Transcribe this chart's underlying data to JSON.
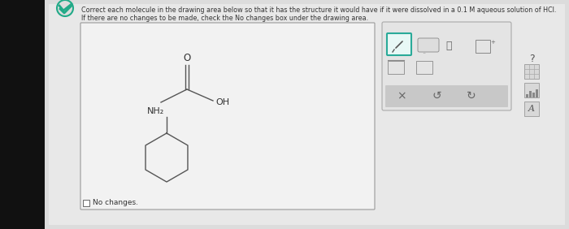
{
  "title_text": "Correct each molecule in the drawing area below so that it has the structure it would have if it were dissolved in a 0.1 M aqueous solution of HCl.",
  "subtitle_text": "If there are no changes to be made, check the No changes box under the drawing area.",
  "no_changes_text": "No changes.",
  "outer_bg": "#3a2a1a",
  "left_bar_color": "#1a1a1a",
  "page_bg": "#e8e8e8",
  "drawing_box_bg": "#f0f0f0",
  "drawing_box_border": "#aaaaaa",
  "toolbar_bg": "#e0e0e0",
  "toolbar_border": "#aaaaaa",
  "pencil_box_bg": "#e8f8f8",
  "pencil_box_border": "#2aaa99",
  "bottom_bar_bg": "#cccccc",
  "right_panel_bg": "#e0e0e0",
  "right_panel_border": "#aaaaaa"
}
